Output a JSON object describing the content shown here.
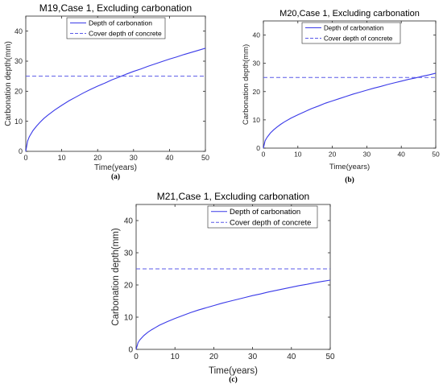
{
  "colors": {
    "series_solid": "#3a3ae8",
    "series_dashed": "#5a5ae8",
    "axis": "#262626",
    "frame": "#262626"
  },
  "chart_data": [
    {
      "type": "line",
      "title": "M19,Case 1, Excluding carbonation",
      "xlabel": "Time(years)",
      "ylabel": "Carbonation depth(mm)",
      "caption": "(a)",
      "xlim": [
        0,
        50
      ],
      "ylim": [
        0,
        45
      ],
      "xticks": [
        0,
        10,
        20,
        30,
        40,
        50
      ],
      "yticks": [
        0,
        10,
        20,
        30,
        40
      ],
      "grid": false,
      "legend_position": "top-center",
      "series": [
        {
          "name": "Depth of carbonation",
          "style": "solid",
          "x": [
            0,
            0.5,
            1,
            2,
            3,
            4,
            5,
            6,
            8,
            10,
            12,
            14,
            16,
            18,
            20,
            22,
            24,
            26,
            28,
            30,
            32,
            34,
            36,
            38,
            40,
            42,
            44,
            46,
            48,
            50
          ],
          "y": [
            0,
            3.4,
            4.9,
            6.9,
            8.4,
            9.7,
            10.9,
            11.9,
            13.7,
            15.3,
            16.8,
            18.1,
            19.4,
            20.6,
            21.7,
            22.7,
            23.8,
            24.7,
            25.7,
            26.6,
            27.4,
            28.3,
            29.1,
            29.9,
            30.7,
            31.4,
            32.2,
            32.9,
            33.6,
            34.3
          ]
        },
        {
          "name": "Cover depth of concrete",
          "style": "dashed",
          "x": [
            0,
            50
          ],
          "y": [
            25,
            25
          ]
        }
      ]
    },
    {
      "type": "line",
      "title": "M20,Case 1, Excluding carbonation",
      "xlabel": "Time(years)",
      "ylabel": "Carbonation depth(mm)",
      "caption": "(b)",
      "xlim": [
        0,
        50
      ],
      "ylim": [
        0,
        45
      ],
      "xticks": [
        0,
        10,
        20,
        30,
        40,
        50
      ],
      "yticks": [
        0,
        10,
        20,
        30,
        40
      ],
      "grid": false,
      "legend_position": "top-right",
      "series": [
        {
          "name": "Depth of carbonation",
          "style": "solid",
          "x": [
            0,
            0.5,
            1,
            2,
            3,
            4,
            5,
            6,
            8,
            10,
            12,
            14,
            16,
            18,
            20,
            22,
            24,
            26,
            28,
            30,
            32,
            34,
            36,
            38,
            40,
            42,
            44,
            46,
            48,
            50
          ],
          "y": [
            0,
            2.6,
            3.7,
            5.3,
            6.5,
            7.5,
            8.4,
            9.2,
            10.6,
            11.8,
            12.9,
            14.0,
            14.9,
            15.9,
            16.7,
            17.5,
            18.3,
            19.1,
            19.8,
            20.5,
            21.2,
            21.8,
            22.5,
            23.1,
            23.7,
            24.3,
            24.8,
            25.4,
            25.9,
            26.5
          ]
        },
        {
          "name": "Cover depth of concrete",
          "style": "dashed",
          "x": [
            0,
            50
          ],
          "y": [
            25,
            25
          ]
        }
      ]
    },
    {
      "type": "line",
      "title": "M21,Case 1, Excluding carbonation",
      "xlabel": "Time(years)",
      "ylabel": "Carbonation depth(mm)",
      "caption": "(c)",
      "xlim": [
        0,
        50
      ],
      "ylim": [
        0,
        45
      ],
      "xticks": [
        0,
        10,
        20,
        30,
        40,
        50
      ],
      "yticks": [
        0,
        10,
        20,
        30,
        40
      ],
      "grid": false,
      "legend_position": "top-center",
      "series": [
        {
          "name": "Depth of carbonation",
          "style": "solid",
          "x": [
            0,
            0.5,
            1,
            2,
            3,
            4,
            5,
            6,
            8,
            10,
            12,
            14,
            16,
            18,
            20,
            22,
            24,
            26,
            28,
            30,
            32,
            34,
            36,
            38,
            40,
            42,
            44,
            46,
            48,
            50
          ],
          "y": [
            0,
            2.1,
            3.0,
            4.3,
            5.3,
            6.1,
            6.8,
            7.5,
            8.6,
            9.6,
            10.5,
            11.4,
            12.2,
            12.9,
            13.6,
            14.3,
            14.9,
            15.5,
            16.1,
            16.7,
            17.2,
            17.8,
            18.3,
            18.8,
            19.3,
            19.8,
            20.2,
            20.7,
            21.1,
            21.5
          ]
        },
        {
          "name": "Cover depth of concrete",
          "style": "dashed",
          "x": [
            0,
            50
          ],
          "y": [
            25,
            25
          ]
        }
      ]
    }
  ]
}
